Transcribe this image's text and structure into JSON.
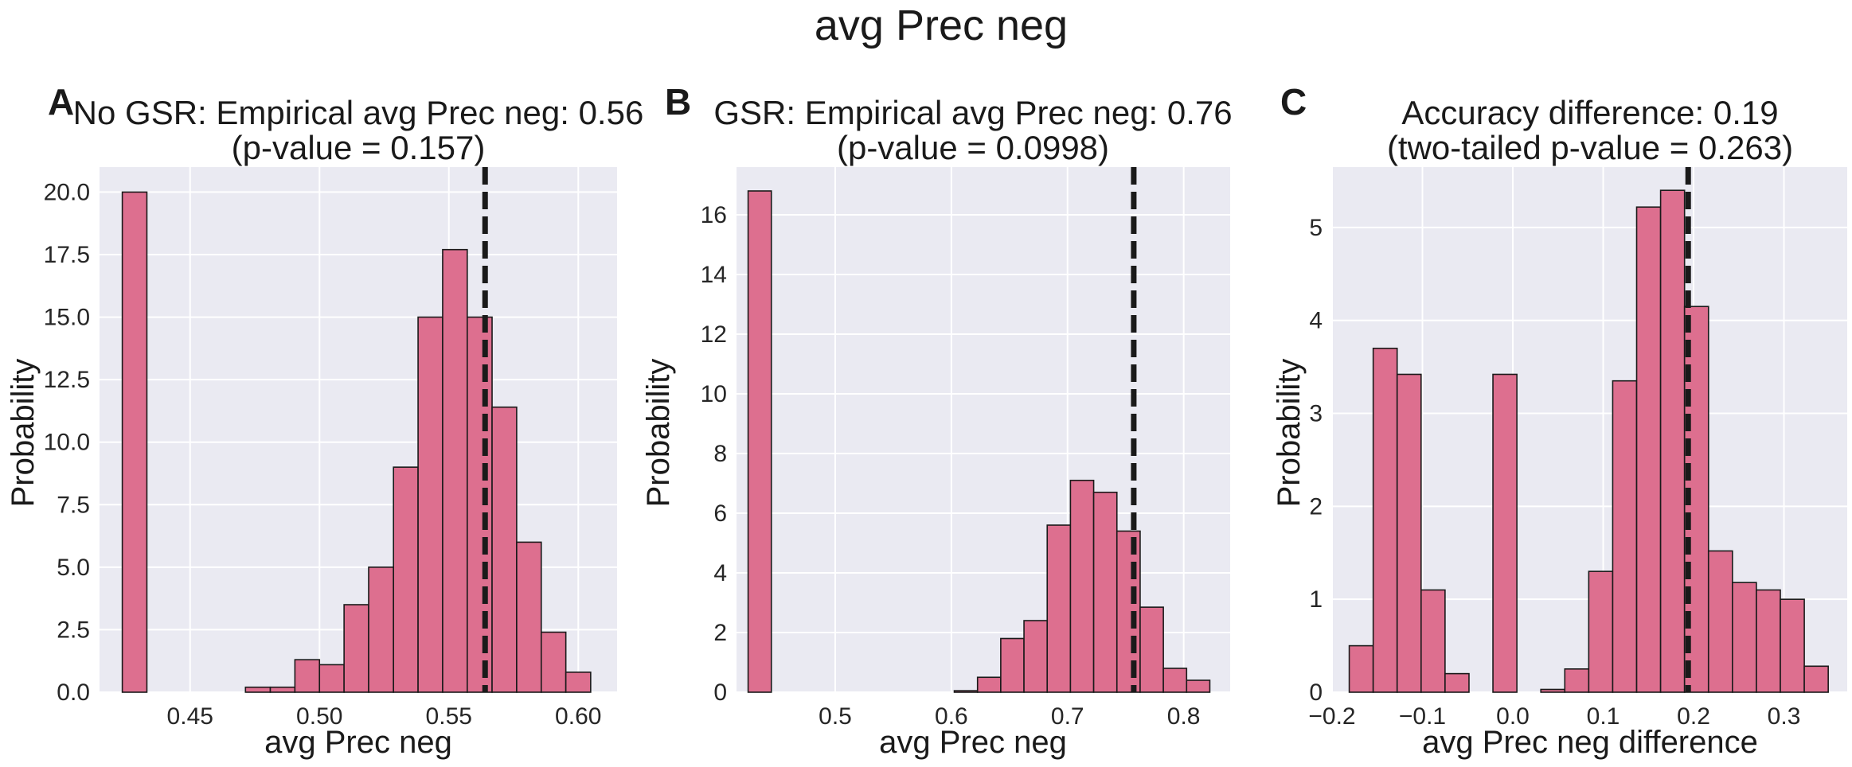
{
  "figure": {
    "suptitle": "avg Prec neg"
  },
  "style": {
    "bar_fill": "#dd6f8f",
    "bar_edge": "#1a1a1a",
    "plot_bg": "#eaeaf2",
    "grid": "#ffffff",
    "vline": "#1a1a1a"
  },
  "chart_data": [
    {
      "type": "bar",
      "panel": "A",
      "title": [
        "No GSR: Empirical avg Prec neg: 0.56",
        "(p-value = 0.157)"
      ],
      "xlabel": "avg Prec neg",
      "ylabel": "Probability",
      "xlim": [
        0.415,
        0.615
      ],
      "ylim": [
        0,
        21.0
      ],
      "xticks": [
        0.45,
        0.5,
        0.55,
        0.6
      ],
      "xtick_labels": [
        "0.45",
        "0.50",
        "0.55",
        "0.60"
      ],
      "yticks": [
        0,
        2.5,
        5,
        7.5,
        10,
        12.5,
        15,
        17.5,
        20
      ],
      "ytick_labels": [
        "0.0",
        "2.5",
        "5.0",
        "7.5",
        "10.0",
        "12.5",
        "15.0",
        "17.5",
        "20.0"
      ],
      "bin_edges": [
        0.4238,
        0.4333,
        0.4429,
        0.4524,
        0.4619,
        0.4714,
        0.481,
        0.4905,
        0.5,
        0.5095,
        0.519,
        0.5286,
        0.5381,
        0.5476,
        0.5571,
        0.5667,
        0.5762,
        0.5857,
        0.5952,
        0.6048
      ],
      "values": [
        20.0,
        0,
        0,
        0,
        0,
        0.2,
        0.2,
        1.3,
        1.1,
        3.5,
        5.0,
        9.0,
        15.0,
        17.7,
        15.0,
        11.4,
        6.0,
        2.4,
        0.8,
        0.5
      ],
      "empirical": 0.564,
      "grid": true
    },
    {
      "type": "bar",
      "panel": "B",
      "title": [
        "GSR: Empirical avg Prec neg: 0.76",
        "(p-value = 0.0998)"
      ],
      "xlabel": "avg Prec neg",
      "ylabel": "Probability",
      "xlim": [
        0.415,
        0.84
      ],
      "ylim": [
        0,
        17.6
      ],
      "xticks": [
        0.5,
        0.6,
        0.7,
        0.8
      ],
      "xtick_labels": [
        "0.5",
        "0.6",
        "0.7",
        "0.8"
      ],
      "yticks": [
        0,
        2,
        4,
        6,
        8,
        10,
        12,
        14,
        16
      ],
      "ytick_labels": [
        "0",
        "2",
        "4",
        "6",
        "8",
        "10",
        "12",
        "14",
        "16"
      ],
      "bin_edges": [
        0.425,
        0.445,
        0.6025,
        0.6225,
        0.6425,
        0.6625,
        0.6825,
        0.7025,
        0.7225,
        0.7425,
        0.7625,
        0.7825,
        0.8025,
        0.8225
      ],
      "values": [
        16.8,
        0,
        0.05,
        0.5,
        1.8,
        2.4,
        5.6,
        7.1,
        6.7,
        5.4,
        2.85,
        0.8,
        0.4
      ],
      "empirical": 0.757,
      "grid": true
    },
    {
      "type": "bar",
      "panel": "C",
      "title": [
        "Accuracy difference: 0.19",
        "(two-tailed p-value = 0.263)"
      ],
      "xlabel": "avg Prec neg difference",
      "ylabel": "Probability",
      "xlim": [
        -0.2,
        0.37
      ],
      "ylim": [
        0,
        5.65
      ],
      "xticks": [
        -0.2,
        -0.1,
        0.0,
        0.1,
        0.2,
        0.3
      ],
      "xtick_labels": [
        "−0.2",
        "−0.1",
        "0.0",
        "0.1",
        "0.2",
        "0.3"
      ],
      "yticks": [
        0,
        1,
        2,
        3,
        4,
        5
      ],
      "ytick_labels": [
        "0",
        "1",
        "2",
        "3",
        "4",
        "5"
      ],
      "bin_edges": [
        -0.181,
        -0.1545,
        -0.128,
        -0.1015,
        -0.075,
        -0.0485,
        -0.022,
        0.0045,
        0.031,
        0.0575,
        0.084,
        0.1105,
        0.137,
        0.1635,
        0.19,
        0.2165,
        0.243,
        0.2695,
        0.296,
        0.3225,
        0.349
      ],
      "values": [
        0.5,
        3.7,
        3.42,
        1.1,
        0.2,
        0,
        3.42,
        0,
        0.03,
        0.25,
        1.3,
        3.35,
        5.22,
        5.4,
        4.15,
        1.52,
        1.18,
        1.1,
        1.0,
        0.28
      ],
      "empirical": 0.194,
      "grid": true
    }
  ]
}
